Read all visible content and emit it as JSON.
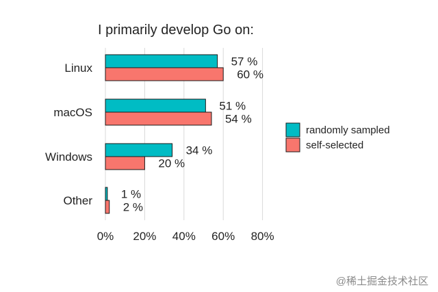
{
  "chart_data": {
    "type": "bar",
    "orientation": "horizontal",
    "title": "I primarily develop Go on:",
    "categories": [
      "Linux",
      "macOS",
      "Windows",
      "Other"
    ],
    "series": [
      {
        "name": "randomly sampled",
        "values": [
          57,
          51,
          34,
          1
        ],
        "labels": [
          "57 %",
          "51 %",
          "34 %",
          "1 %"
        ],
        "color": "#00bcc4"
      },
      {
        "name": "self-selected",
        "values": [
          60,
          54,
          20,
          2
        ],
        "labels": [
          "60 %",
          "54 %",
          "20 %",
          "2 %"
        ],
        "color": "#f8766d"
      }
    ],
    "x_ticks": [
      0,
      20,
      40,
      60,
      80
    ],
    "x_tick_labels": [
      "0%",
      "20%",
      "40%",
      "60%",
      "80%"
    ],
    "xlim": [
      0,
      80
    ],
    "grid": "vertical",
    "legend_position": "right"
  },
  "watermark": "@稀土掘金技术社区"
}
